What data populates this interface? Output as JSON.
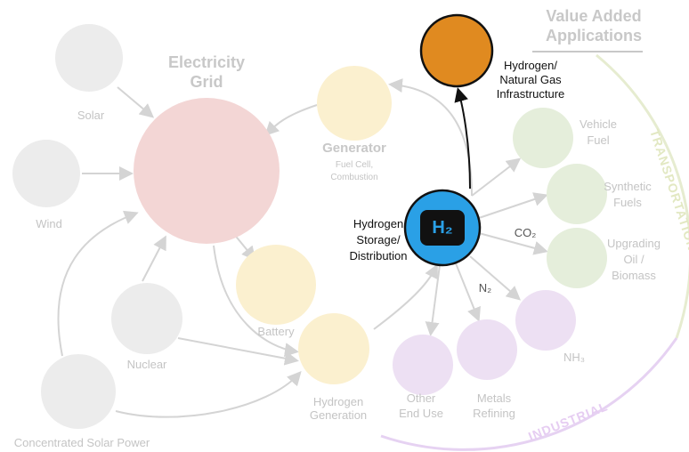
{
  "header": {
    "lines": [
      "Value Added",
      "Applications"
    ]
  },
  "nodes": [
    {
      "lines": [
        "Electricity",
        "Grid"
      ]
    },
    {
      "lines": [
        "Solar"
      ]
    },
    {
      "lines": [
        "Wind"
      ]
    },
    {
      "lines": [
        "Nuclear"
      ]
    },
    {
      "lines": [
        "Concentrated Solar Power"
      ]
    },
    {
      "lines": [
        "Generator"
      ],
      "sub": [
        "Fuel Cell,",
        "Combustion"
      ]
    },
    {
      "lines": [
        "Battery"
      ]
    },
    {
      "lines": [
        "Hydrogen",
        "Generation"
      ]
    },
    {
      "lines": [
        "Hydrogen",
        "Storage/",
        "Distribution"
      ],
      "symbol": "H₂"
    },
    {
      "lines": [
        "Hydrogen/",
        "Natural Gas",
        "Infrastructure"
      ]
    },
    {
      "lines": [
        "Vehicle",
        "Fuel"
      ]
    },
    {
      "lines": [
        "Synthetic",
        "Fuels"
      ]
    },
    {
      "lines": [
        "Upgrading",
        "Oil /",
        "Biomass"
      ]
    },
    {
      "lines": [
        "NH₃"
      ]
    },
    {
      "lines": [
        "Metals",
        "Refining"
      ]
    },
    {
      "lines": [
        "Other",
        "End Use"
      ]
    }
  ],
  "inputs": [
    "CO₂",
    "N₂"
  ],
  "sectors": [
    "TRANSPORTATION",
    "INDUSTRIAL"
  ]
}
